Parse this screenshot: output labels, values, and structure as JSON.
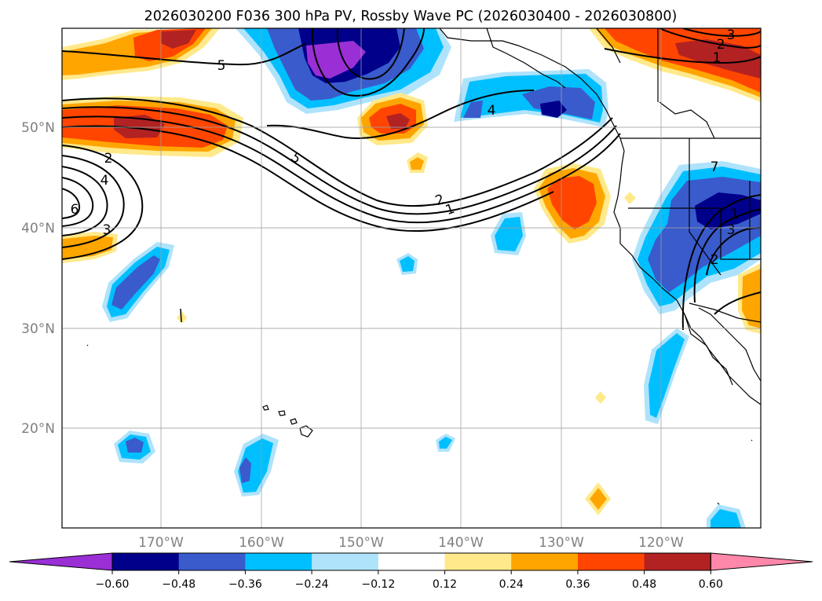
{
  "title": "2026030200 F036 300 hPa PV, Rossby Wave PC (2026030400 - 2026030800)",
  "map": {
    "lat_labels": [
      "50°N",
      "40°N",
      "30°N",
      "20°N"
    ],
    "lon_labels": [
      "170°W",
      "160°W",
      "150°W",
      "140°W",
      "130°W",
      "120°W"
    ],
    "contour_labels": [
      "5",
      "5",
      "4",
      "2",
      "1",
      "2",
      "4",
      "6",
      "3",
      "1",
      "2",
      "3",
      "7",
      "1",
      "2",
      "3"
    ]
  },
  "colorbar": {
    "ticks": [
      "−0.60",
      "−0.48",
      "−0.36",
      "−0.24",
      "−0.12",
      "0.12",
      "0.24",
      "0.36",
      "0.48",
      "0.60"
    ],
    "colors": [
      "#9a2fd6",
      "#00008b",
      "#3a5bcc",
      "#00bfff",
      "#aee3fb",
      "#ffffff",
      "#ffe98a",
      "#ffa500",
      "#ff4500",
      "#b22222",
      "#ff88aa"
    ]
  }
}
